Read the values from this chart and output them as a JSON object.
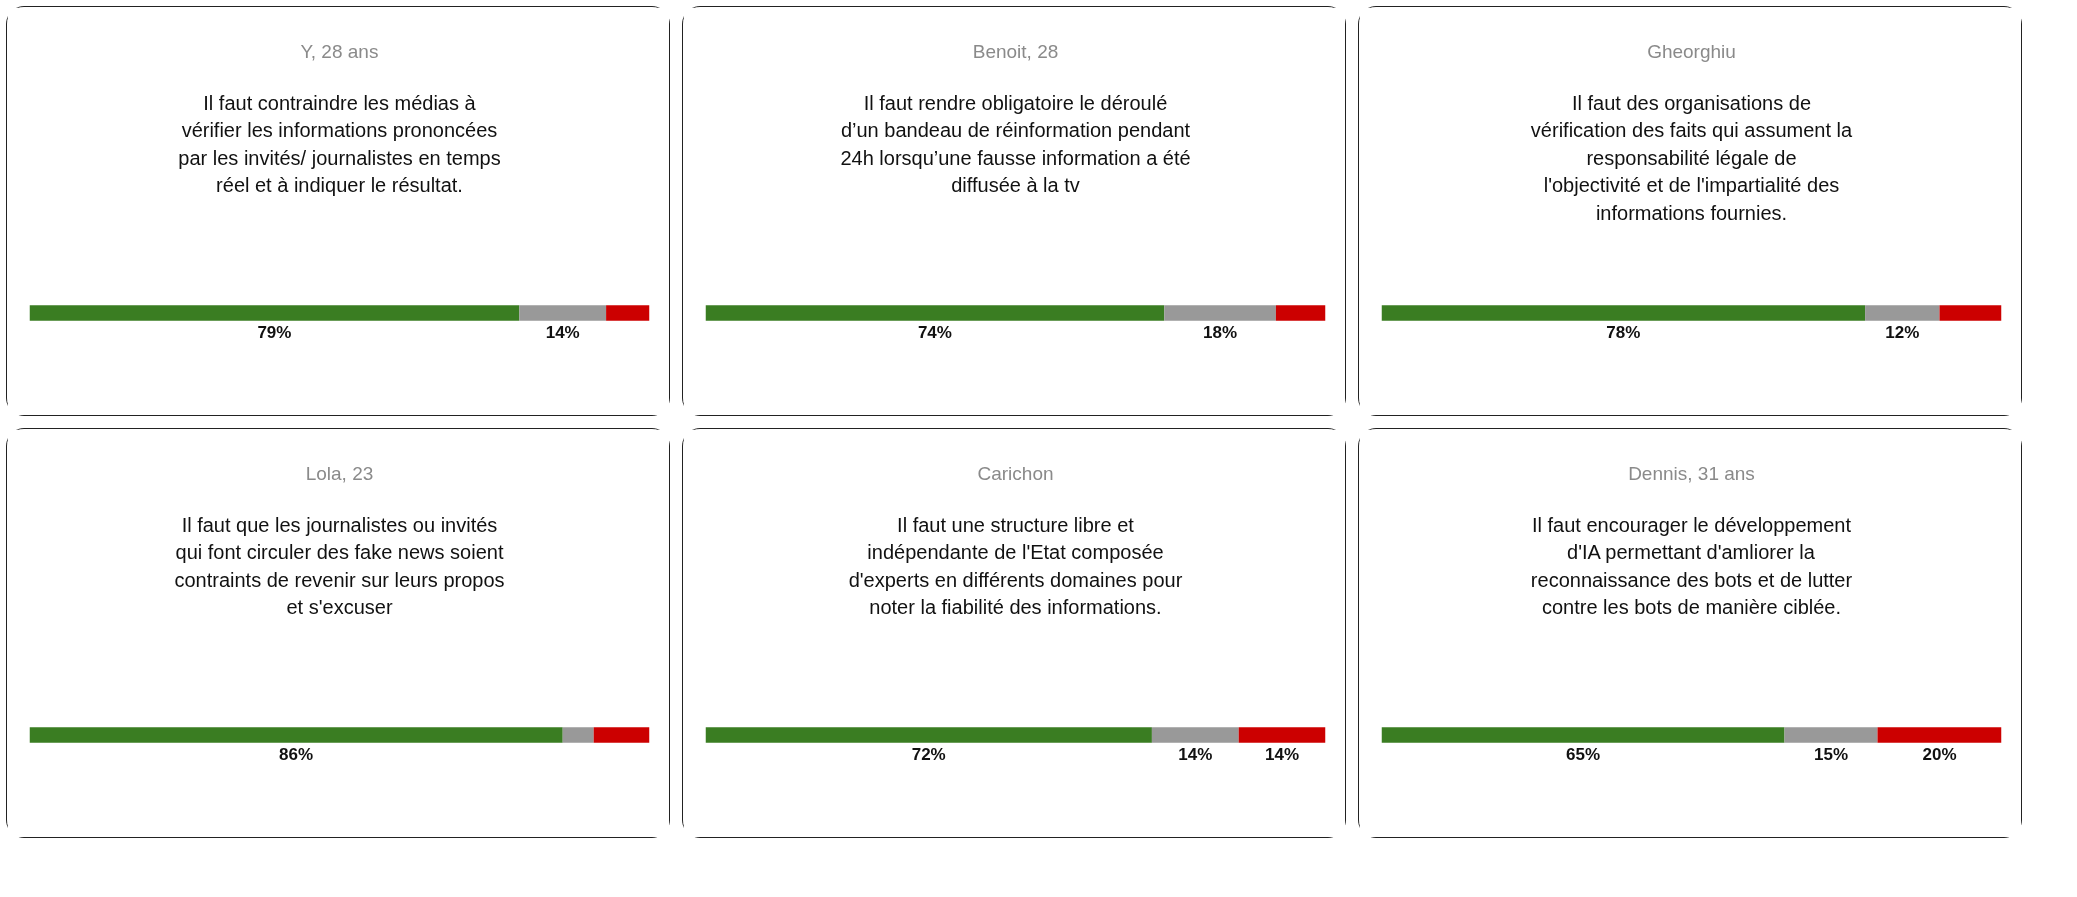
{
  "chart_data": [
    {
      "type": "bar",
      "orientation": "horizontal",
      "stacked": true,
      "title": "Y, 28 ans",
      "subtitle": "Il faut contraindre les médias à\nvérifier les informations prononcées\npar les invités/ journalistes en temps\nréel et à indiquer le résultat.",
      "categories": [
        null
      ],
      "tick_labels": false,
      "series": [
        {
          "color": "#3a7d22",
          "values": [
            79
          ],
          "value_labels": [
            "79%"
          ]
        },
        {
          "color": "#999999",
          "values": [
            14
          ],
          "value_labels": [
            "14%"
          ]
        },
        {
          "color": "#cc0000",
          "values": [
            7
          ],
          "value_labels": [
            null
          ]
        }
      ]
    },
    {
      "type": "bar",
      "orientation": "horizontal",
      "stacked": true,
      "title": "Benoit, 28",
      "subtitle": "Il faut rendre obligatoire le déroulé\nd’un bandeau de réinformation pendant\n24h lorsqu’une fausse information a été\ndiffusée à la tv",
      "categories": [
        null
      ],
      "tick_labels": false,
      "series": [
        {
          "color": "#3a7d22",
          "values": [
            74
          ],
          "value_labels": [
            "74%"
          ]
        },
        {
          "color": "#999999",
          "values": [
            18
          ],
          "value_labels": [
            "18%"
          ]
        },
        {
          "color": "#cc0000",
          "values": [
            8
          ],
          "value_labels": [
            null
          ]
        }
      ]
    },
    {
      "type": "bar",
      "orientation": "horizontal",
      "stacked": true,
      "title": "Gheorghiu",
      "subtitle": "Il faut des organisations de\nvérification des faits qui assument la\nresponsabilité légale de\nl'objectivité et de l'impartialité des\ninformations fournies.",
      "categories": [
        null
      ],
      "tick_labels": false,
      "series": [
        {
          "color": "#3a7d22",
          "values": [
            78
          ],
          "value_labels": [
            "78%"
          ]
        },
        {
          "color": "#999999",
          "values": [
            12
          ],
          "value_labels": [
            "12%"
          ]
        },
        {
          "color": "#cc0000",
          "values": [
            10
          ],
          "value_labels": [
            null
          ]
        }
      ]
    },
    {
      "type": "bar",
      "orientation": "horizontal",
      "stacked": true,
      "title": "Lola, 23",
      "subtitle": "Il faut que les journalistes ou invités\nqui font circuler des fake news soient\ncontraints de revenir sur leurs propos\net s'excuser",
      "categories": [
        null
      ],
      "tick_labels": false,
      "series": [
        {
          "color": "#3a7d22",
          "values": [
            86
          ],
          "value_labels": [
            "86%"
          ]
        },
        {
          "color": "#999999",
          "values": [
            5
          ],
          "value_labels": [
            null
          ]
        },
        {
          "color": "#cc0000",
          "values": [
            9
          ],
          "value_labels": [
            null
          ]
        }
      ]
    },
    {
      "type": "bar",
      "orientation": "horizontal",
      "stacked": true,
      "title": "Carichon",
      "subtitle": "Il faut une structure libre et\nindépendante de l'Etat composée\nd'experts en différents domaines pour\nnoter la fiabilité des informations.",
      "categories": [
        null
      ],
      "tick_labels": false,
      "series": [
        {
          "color": "#3a7d22",
          "values": [
            72
          ],
          "value_labels": [
            "72%"
          ]
        },
        {
          "color": "#999999",
          "values": [
            14
          ],
          "value_labels": [
            "14%"
          ]
        },
        {
          "color": "#cc0000",
          "values": [
            14
          ],
          "value_labels": [
            "14%"
          ]
        }
      ]
    },
    {
      "type": "bar",
      "orientation": "horizontal",
      "stacked": true,
      "title": "Dennis, 31 ans",
      "subtitle": "Il faut encourager le développement\nd'IA permettant d'amliorer la\nreconnaissance des bots et de lutter\ncontre les bots de manière ciblée.",
      "categories": [
        null
      ],
      "tick_labels": false,
      "series": [
        {
          "color": "#3a7d22",
          "values": [
            65
          ],
          "value_labels": [
            "65%"
          ]
        },
        {
          "color": "#999999",
          "values": [
            15
          ],
          "value_labels": [
            "15%"
          ]
        },
        {
          "color": "#cc0000",
          "values": [
            20
          ],
          "value_labels": [
            "20%"
          ]
        }
      ]
    }
  ]
}
